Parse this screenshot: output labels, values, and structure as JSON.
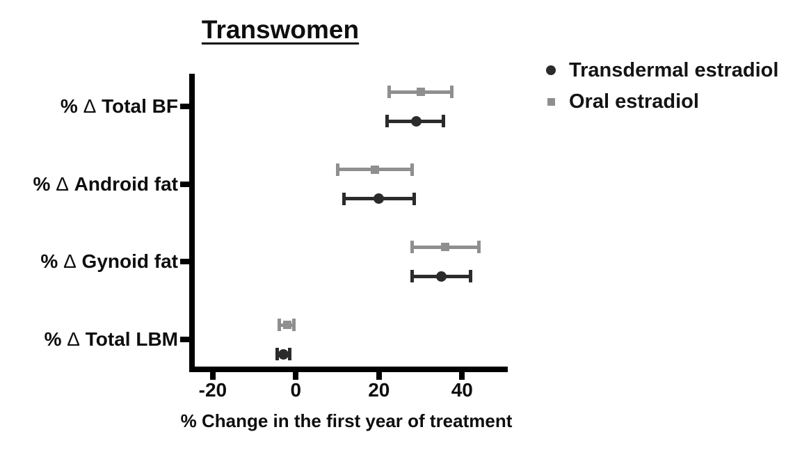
{
  "chart_data": {
    "type": "scatter",
    "variant": "horizontal point estimates with error bars (forest-style dot plot)",
    "title": "Transwomen",
    "xlabel": "% Change in the first year of treatment",
    "categories": [
      "% Δ Total BF",
      "% Δ Android fat",
      "% Δ Gynoid fat",
      "% Δ Total LBM"
    ],
    "xlim": [
      -25,
      51
    ],
    "x_ticks": [
      -20,
      0,
      20,
      40
    ],
    "grid": false,
    "legend_position": "top-right",
    "axis_color": "#000000",
    "series": [
      {
        "name": "Transdermal estradiol",
        "marker": "circle",
        "color": "#2b2b2b",
        "values": [
          {
            "category": "% Δ Total BF",
            "mean": 29,
            "lo": 22,
            "hi": 35.5
          },
          {
            "category": "% Δ Android fat",
            "mean": 20,
            "lo": 11.5,
            "hi": 28.5
          },
          {
            "category": "% Δ Gynoid fat",
            "mean": 35,
            "lo": 28,
            "hi": 42
          },
          {
            "category": "% Δ Total LBM",
            "mean": -3,
            "lo": -4.5,
            "hi": -1.5
          }
        ]
      },
      {
        "name": "Oral estradiol",
        "marker": "square",
        "color": "#8f8f8f",
        "values": [
          {
            "category": "% Δ Total BF",
            "mean": 30,
            "lo": 22.5,
            "hi": 37.5
          },
          {
            "category": "% Δ Android fat",
            "mean": 19,
            "lo": 10,
            "hi": 28
          },
          {
            "category": "% Δ Gynoid fat",
            "mean": 36,
            "lo": 28,
            "hi": 44
          },
          {
            "category": "% Δ Total LBM",
            "mean": -2,
            "lo": -4,
            "hi": -0.5
          }
        ]
      }
    ]
  }
}
